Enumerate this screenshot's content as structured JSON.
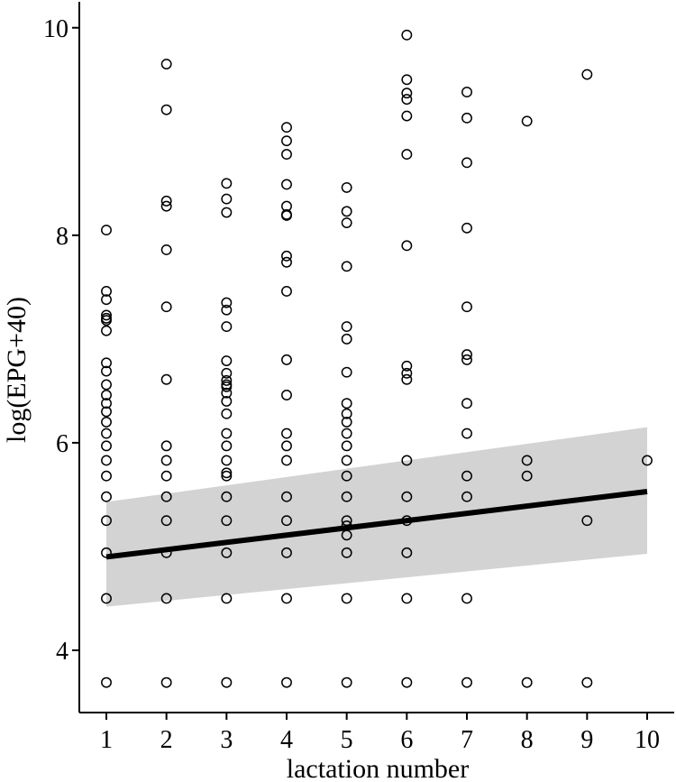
{
  "chart_data": {
    "type": "scatter",
    "title": "",
    "xlabel": "lactation number",
    "ylabel": "log(EPG+40)",
    "xlim": [
      0.55,
      10.45
    ],
    "ylim": [
      3.4,
      10.25
    ],
    "x_ticks": [
      1,
      2,
      3,
      4,
      5,
      6,
      7,
      8,
      9,
      10
    ],
    "y_ticks": [
      4,
      6,
      8,
      10
    ],
    "grid": false,
    "series": [
      {
        "name": "observations",
        "points": [
          [
            1,
            8.05
          ],
          [
            1,
            7.46
          ],
          [
            1,
            7.38
          ],
          [
            1,
            7.23
          ],
          [
            1,
            7.2
          ],
          [
            1,
            7.18
          ],
          [
            1,
            7.08
          ],
          [
            1,
            6.77
          ],
          [
            1,
            6.69
          ],
          [
            1,
            6.56
          ],
          [
            1,
            6.46
          ],
          [
            1,
            6.38
          ],
          [
            1,
            6.3
          ],
          [
            1,
            6.2
          ],
          [
            1,
            6.09
          ],
          [
            1,
            5.97
          ],
          [
            1,
            5.83
          ],
          [
            1,
            5.68
          ],
          [
            1,
            5.48
          ],
          [
            1,
            5.25
          ],
          [
            1,
            4.94
          ],
          [
            1,
            4.5
          ],
          [
            1,
            3.69
          ],
          [
            2,
            9.65
          ],
          [
            2,
            9.21
          ],
          [
            2,
            8.33
          ],
          [
            2,
            8.28
          ],
          [
            2,
            7.86
          ],
          [
            2,
            7.31
          ],
          [
            2,
            6.61
          ],
          [
            2,
            5.97
          ],
          [
            2,
            5.83
          ],
          [
            2,
            5.68
          ],
          [
            2,
            5.48
          ],
          [
            2,
            5.25
          ],
          [
            2,
            4.94
          ],
          [
            2,
            4.5
          ],
          [
            2,
            3.69
          ],
          [
            3,
            8.5
          ],
          [
            3,
            8.35
          ],
          [
            3,
            8.22
          ],
          [
            3,
            7.35
          ],
          [
            3,
            7.28
          ],
          [
            3,
            7.12
          ],
          [
            3,
            6.79
          ],
          [
            3,
            6.67
          ],
          [
            3,
            6.6
          ],
          [
            3,
            6.56
          ],
          [
            3,
            6.54
          ],
          [
            3,
            6.48
          ],
          [
            3,
            6.4
          ],
          [
            3,
            6.28
          ],
          [
            3,
            6.09
          ],
          [
            3,
            5.97
          ],
          [
            3,
            5.83
          ],
          [
            3,
            5.71
          ],
          [
            3,
            5.68
          ],
          [
            3,
            5.48
          ],
          [
            3,
            5.25
          ],
          [
            3,
            4.94
          ],
          [
            3,
            4.5
          ],
          [
            3,
            3.69
          ],
          [
            4,
            9.04
          ],
          [
            4,
            8.91
          ],
          [
            4,
            8.78
          ],
          [
            4,
            8.49
          ],
          [
            4,
            8.28
          ],
          [
            4,
            8.2
          ],
          [
            4,
            8.19
          ],
          [
            4,
            7.8
          ],
          [
            4,
            7.74
          ],
          [
            4,
            7.46
          ],
          [
            4,
            6.8
          ],
          [
            4,
            6.46
          ],
          [
            4,
            6.09
          ],
          [
            4,
            5.97
          ],
          [
            4,
            5.83
          ],
          [
            4,
            5.48
          ],
          [
            4,
            5.25
          ],
          [
            4,
            4.94
          ],
          [
            4,
            4.5
          ],
          [
            4,
            3.69
          ],
          [
            5,
            8.46
          ],
          [
            5,
            8.23
          ],
          [
            5,
            8.12
          ],
          [
            5,
            7.7
          ],
          [
            5,
            7.12
          ],
          [
            5,
            7.0
          ],
          [
            5,
            6.68
          ],
          [
            5,
            6.38
          ],
          [
            5,
            6.28
          ],
          [
            5,
            6.2
          ],
          [
            5,
            6.09
          ],
          [
            5,
            5.97
          ],
          [
            5,
            5.83
          ],
          [
            5,
            5.68
          ],
          [
            5,
            5.48
          ],
          [
            5,
            5.25
          ],
          [
            5,
            5.2
          ],
          [
            5,
            5.11
          ],
          [
            5,
            4.94
          ],
          [
            5,
            4.5
          ],
          [
            5,
            3.69
          ],
          [
            6,
            9.93
          ],
          [
            6,
            9.5
          ],
          [
            6,
            9.37
          ],
          [
            6,
            9.31
          ],
          [
            6,
            9.15
          ],
          [
            6,
            8.78
          ],
          [
            6,
            7.9
          ],
          [
            6,
            6.74
          ],
          [
            6,
            6.67
          ],
          [
            6,
            6.61
          ],
          [
            6,
            5.83
          ],
          [
            6,
            5.48
          ],
          [
            6,
            5.25
          ],
          [
            6,
            4.94
          ],
          [
            6,
            4.5
          ],
          [
            6,
            3.69
          ],
          [
            7,
            9.38
          ],
          [
            7,
            9.13
          ],
          [
            7,
            8.7
          ],
          [
            7,
            8.07
          ],
          [
            7,
            7.31
          ],
          [
            7,
            6.85
          ],
          [
            7,
            6.8
          ],
          [
            7,
            6.38
          ],
          [
            7,
            6.09
          ],
          [
            7,
            5.68
          ],
          [
            7,
            5.48
          ],
          [
            7,
            4.5
          ],
          [
            7,
            3.69
          ],
          [
            8,
            9.1
          ],
          [
            8,
            5.83
          ],
          [
            8,
            5.68
          ],
          [
            8,
            3.69
          ],
          [
            9,
            9.55
          ],
          [
            9,
            5.25
          ],
          [
            9,
            3.69
          ],
          [
            10,
            5.83
          ]
        ]
      }
    ],
    "fit": {
      "type": "linear",
      "x_range": [
        1,
        10
      ],
      "y_fit": [
        4.9,
        5.53
      ],
      "ci_lower": [
        4.42,
        4.93
      ],
      "ci_upper": [
        5.43,
        6.15
      ]
    }
  }
}
